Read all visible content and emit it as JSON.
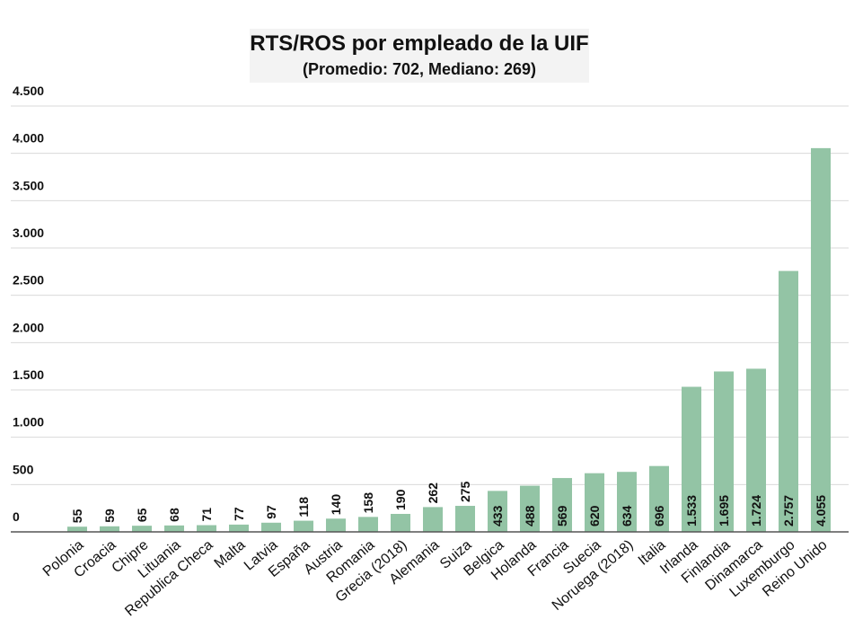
{
  "chart_data": {
    "type": "bar",
    "title": "RTS/ROS por empleado de la UIF",
    "subtitle": "(Promedio: 702, Mediano: 269)",
    "categories": [
      "Polonia",
      "Croacia",
      "Chipre",
      "Lituania",
      "Republica Checa",
      "Malta",
      "Latvia",
      "España",
      "Austria",
      "Romania",
      "Grecia (2018)",
      "Alemania",
      "Suiza",
      "Belgica",
      "Holanda",
      "Francia",
      "Suecia",
      "Noruega (2018)",
      "Italia",
      "Irlanda",
      "Finlandia",
      "Dinamarca",
      "Luxemburgo",
      "Reino Unido"
    ],
    "values": [
      55,
      59,
      65,
      68,
      71,
      77,
      97,
      118,
      140,
      158,
      190,
      262,
      275,
      433,
      488,
      569,
      620,
      634,
      696,
      1533,
      1695,
      1724,
      2757,
      4055
    ],
    "value_labels": [
      "55",
      "59",
      "65",
      "68",
      "71",
      "77",
      "97",
      "118",
      "140",
      "158",
      "190",
      "262",
      "275",
      "433",
      "488",
      "569",
      "620",
      "634",
      "696",
      "1.533",
      "1.695",
      "1.724",
      "2.757",
      "4.055"
    ],
    "color": "#93c4a5",
    "ylim": [
      0,
      4500
    ],
    "yticks": [
      0,
      500,
      {
        "value": 1000,
        "label": "1.000"
      },
      {
        "value": 1500,
        "label": "1.500"
      },
      {
        "value": 2000,
        "label": "2.000"
      },
      {
        "value": 2500,
        "label": "2.500"
      },
      {
        "value": 3000,
        "label": "3.000"
      },
      {
        "value": 3500,
        "label": "3.500"
      },
      {
        "value": 4000,
        "label": "4.000"
      },
      {
        "value": 4500,
        "label": "4.500"
      }
    ],
    "grid": true
  }
}
